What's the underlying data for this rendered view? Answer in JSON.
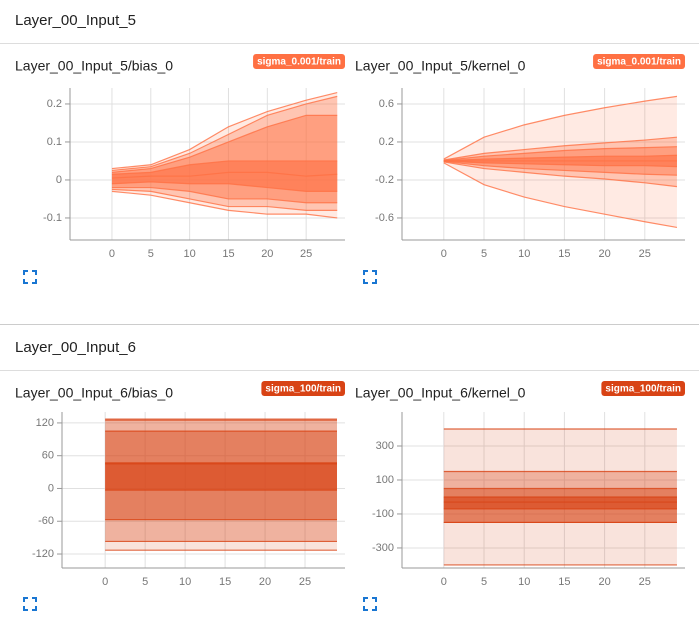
{
  "sections": [
    {
      "title": "Layer_00_Input_5",
      "charts": [
        {
          "type": "distribution",
          "title": "Layer_00_Input_5/bias_0",
          "tag": "sigma_0.001/train",
          "color": "#ff7043",
          "x": [
            0,
            5,
            10,
            15,
            20,
            25,
            29
          ],
          "xlim": [
            -5.4,
            30
          ],
          "xticks": [
            0,
            5,
            10,
            15,
            20,
            25
          ],
          "ylim": [
            -0.158,
            0.242
          ],
          "yticks": [
            -0.1,
            0,
            0.1,
            0.2
          ],
          "series": [
            {
              "values": [
                -0.03,
                -0.04,
                -0.06,
                -0.08,
                -0.09,
                -0.09,
                -0.1
              ]
            },
            {
              "values": [
                -0.025,
                -0.03,
                -0.05,
                -0.07,
                -0.07,
                -0.08,
                -0.08
              ]
            },
            {
              "values": [
                -0.02,
                -0.02,
                -0.03,
                -0.05,
                -0.05,
                -0.06,
                -0.06
              ]
            },
            {
              "values": [
                -0.01,
                -0.005,
                -0.01,
                -0.01,
                -0.02,
                -0.03,
                -0.03
              ]
            },
            {
              "values": [
                0.005,
                0.01,
                0.01,
                0.02,
                0.02,
                0.01,
                0.015
              ]
            },
            {
              "values": [
                0.015,
                0.02,
                0.04,
                0.05,
                0.05,
                0.05,
                0.05
              ]
            },
            {
              "values": [
                0.02,
                0.03,
                0.06,
                0.1,
                0.14,
                0.17,
                0.17
              ]
            },
            {
              "values": [
                0.025,
                0.035,
                0.07,
                0.12,
                0.17,
                0.2,
                0.22
              ]
            },
            {
              "values": [
                0.03,
                0.04,
                0.08,
                0.14,
                0.18,
                0.21,
                0.23
              ]
            }
          ]
        },
        {
          "type": "distribution",
          "title": "Layer_00_Input_5/kernel_0",
          "tag": "sigma_0.001/train",
          "color": "#ff7043",
          "x": [
            0,
            5,
            10,
            15,
            20,
            25,
            29
          ],
          "xlim": [
            -5.2,
            30
          ],
          "xticks": [
            0,
            5,
            10,
            15,
            20,
            25
          ],
          "ylim": [
            -0.832,
            0.768
          ],
          "yticks": [
            -0.6,
            -0.2,
            0.2,
            0.6
          ],
          "series": [
            {
              "values": [
                -0.02,
                -0.25,
                -0.38,
                -0.48,
                -0.56,
                -0.64,
                -0.7
              ]
            },
            {
              "values": [
                -0.01,
                -0.08,
                -0.12,
                -0.16,
                -0.19,
                -0.23,
                -0.27
              ]
            },
            {
              "values": [
                -0.005,
                -0.05,
                -0.08,
                -0.1,
                -0.12,
                -0.14,
                -0.15
              ]
            },
            {
              "values": [
                -0.002,
                -0.02,
                -0.03,
                -0.04,
                -0.05,
                -0.05,
                -0.06
              ]
            },
            {
              "values": [
                0,
                0,
                0,
                0,
                0,
                0,
                0
              ]
            },
            {
              "values": [
                0.002,
                0.02,
                0.03,
                0.04,
                0.05,
                0.05,
                0.06
              ]
            },
            {
              "values": [
                0.005,
                0.05,
                0.08,
                0.11,
                0.13,
                0.14,
                0.15
              ]
            },
            {
              "values": [
                0.01,
                0.08,
                0.12,
                0.16,
                0.19,
                0.22,
                0.25
              ]
            },
            {
              "values": [
                0.02,
                0.25,
                0.38,
                0.48,
                0.56,
                0.63,
                0.68
              ]
            }
          ]
        }
      ]
    },
    {
      "title": "Layer_00_Input_6",
      "charts": [
        {
          "type": "distribution",
          "title": "Layer_00_Input_6/bias_0",
          "tag": "sigma_100/train",
          "color": "#d84315",
          "x": [
            0,
            5,
            10,
            15,
            20,
            25,
            29
          ],
          "xlim": [
            -5.4,
            30
          ],
          "xticks": [
            0,
            5,
            10,
            15,
            20,
            25
          ],
          "ylim": [
            -145.6,
            140
          ],
          "yticks": [
            -120,
            -60,
            0,
            60,
            120
          ],
          "series": [
            {
              "values": [
                -113,
                -113,
                -113,
                -113,
                -113,
                -113,
                -113
              ]
            },
            {
              "values": [
                -97,
                -97,
                -97,
                -97,
                -97,
                -97,
                -97
              ]
            },
            {
              "values": [
                -57,
                -57,
                -57,
                -57,
                -57,
                -57,
                -57
              ]
            },
            {
              "values": [
                -3,
                -3,
                -3,
                -3,
                -3,
                -3,
                -3
              ]
            },
            {
              "values": [
                45,
                45,
                45,
                45,
                45,
                45,
                45
              ]
            },
            {
              "values": [
                47,
                47,
                47,
                47,
                47,
                47,
                47
              ]
            },
            {
              "values": [
                105,
                105,
                105,
                105,
                105,
                105,
                105
              ]
            },
            {
              "values": [
                125,
                125,
                125,
                125,
                125,
                125,
                125
              ]
            },
            {
              "values": [
                127,
                127,
                127,
                127,
                127,
                127,
                127
              ]
            }
          ]
        },
        {
          "type": "distribution",
          "title": "Layer_00_Input_6/kernel_0",
          "tag": "sigma_100/train",
          "color": "#d84315",
          "x": [
            0,
            5,
            10,
            15,
            20,
            25,
            29
          ],
          "xlim": [
            -5.2,
            30
          ],
          "xticks": [
            0,
            5,
            10,
            15,
            20,
            25
          ],
          "ylim": [
            -418,
            500
          ],
          "yticks": [
            -300,
            -100,
            100,
            300
          ],
          "series": [
            {
              "values": [
                -400,
                -400,
                -400,
                -400,
                -400,
                -400,
                -400
              ]
            },
            {
              "values": [
                -150,
                -150,
                -150,
                -150,
                -150,
                -150,
                -150
              ]
            },
            {
              "values": [
                -150,
                -150,
                -150,
                -150,
                -150,
                -150,
                -150
              ]
            },
            {
              "values": [
                -70,
                -70,
                -70,
                -70,
                -70,
                -70,
                -70
              ]
            },
            {
              "values": [
                -30,
                -30,
                -30,
                -30,
                -30,
                -30,
                -30
              ]
            },
            {
              "values": [
                0,
                0,
                0,
                0,
                0,
                0,
                0
              ]
            },
            {
              "values": [
                50,
                50,
                50,
                50,
                50,
                50,
                50
              ]
            },
            {
              "values": [
                150,
                150,
                150,
                150,
                150,
                150,
                150
              ]
            },
            {
              "values": [
                400,
                400,
                400,
                400,
                400,
                400,
                400
              ]
            }
          ]
        }
      ]
    }
  ]
}
